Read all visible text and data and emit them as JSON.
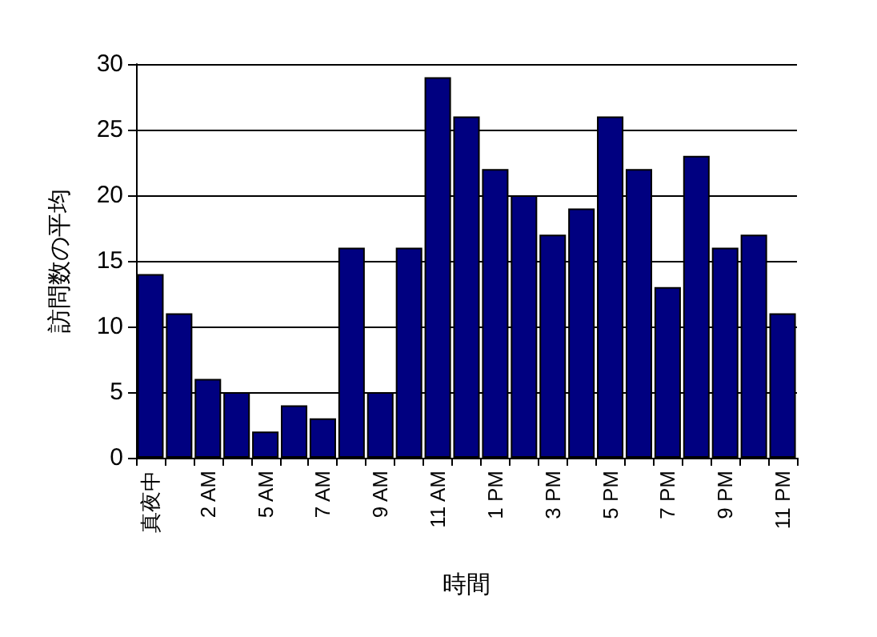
{
  "chart_data": {
    "type": "bar",
    "xlabel": "時間",
    "ylabel": "訪問数の平均",
    "categories": [
      "真夜中",
      null,
      "2 AM",
      null,
      "5 AM",
      null,
      "7 AM",
      null,
      "9 AM",
      null,
      "11 AM",
      null,
      "1 PM",
      null,
      "3 PM",
      null,
      "5 PM",
      null,
      "7 PM",
      null,
      "9 PM",
      null,
      "11 PM"
    ],
    "values": [
      14,
      11,
      6,
      5,
      2,
      4,
      3,
      16,
      5,
      16,
      29,
      26,
      22,
      20,
      17,
      19,
      26,
      22,
      13,
      23,
      16,
      17,
      11
    ],
    "color": "#000080",
    "ylim": [
      0,
      30
    ],
    "yticks": [
      0,
      5,
      10,
      15,
      20,
      25,
      30
    ],
    "grid": "y"
  }
}
